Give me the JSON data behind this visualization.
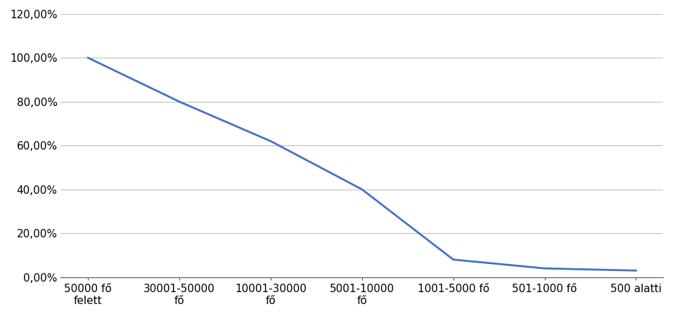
{
  "categories": [
    "50000 fő\nfelett",
    "30001-50000\nfő",
    "10001-30000\nfő",
    "5001-10000\nfő",
    "1001-5000 fő",
    "501-1000 fő",
    "500 alatti"
  ],
  "values": [
    100.0,
    80.0,
    62.0,
    40.0,
    8.0,
    4.0,
    3.0
  ],
  "line_color": "#4472C4",
  "line_width": 2.0,
  "ylim": [
    0,
    120
  ],
  "yticks": [
    0,
    20,
    40,
    60,
    80,
    100,
    120
  ],
  "ytick_labels": [
    "0,00%",
    "20,00%",
    "40,00%",
    "60,00%",
    "80,00%",
    "100,00%",
    "120,00%"
  ],
  "grid_color": "#C0C0C0",
  "background_color": "#FFFFFF",
  "tick_fontsize": 11,
  "figure_width": 9.6,
  "figure_height": 4.5
}
